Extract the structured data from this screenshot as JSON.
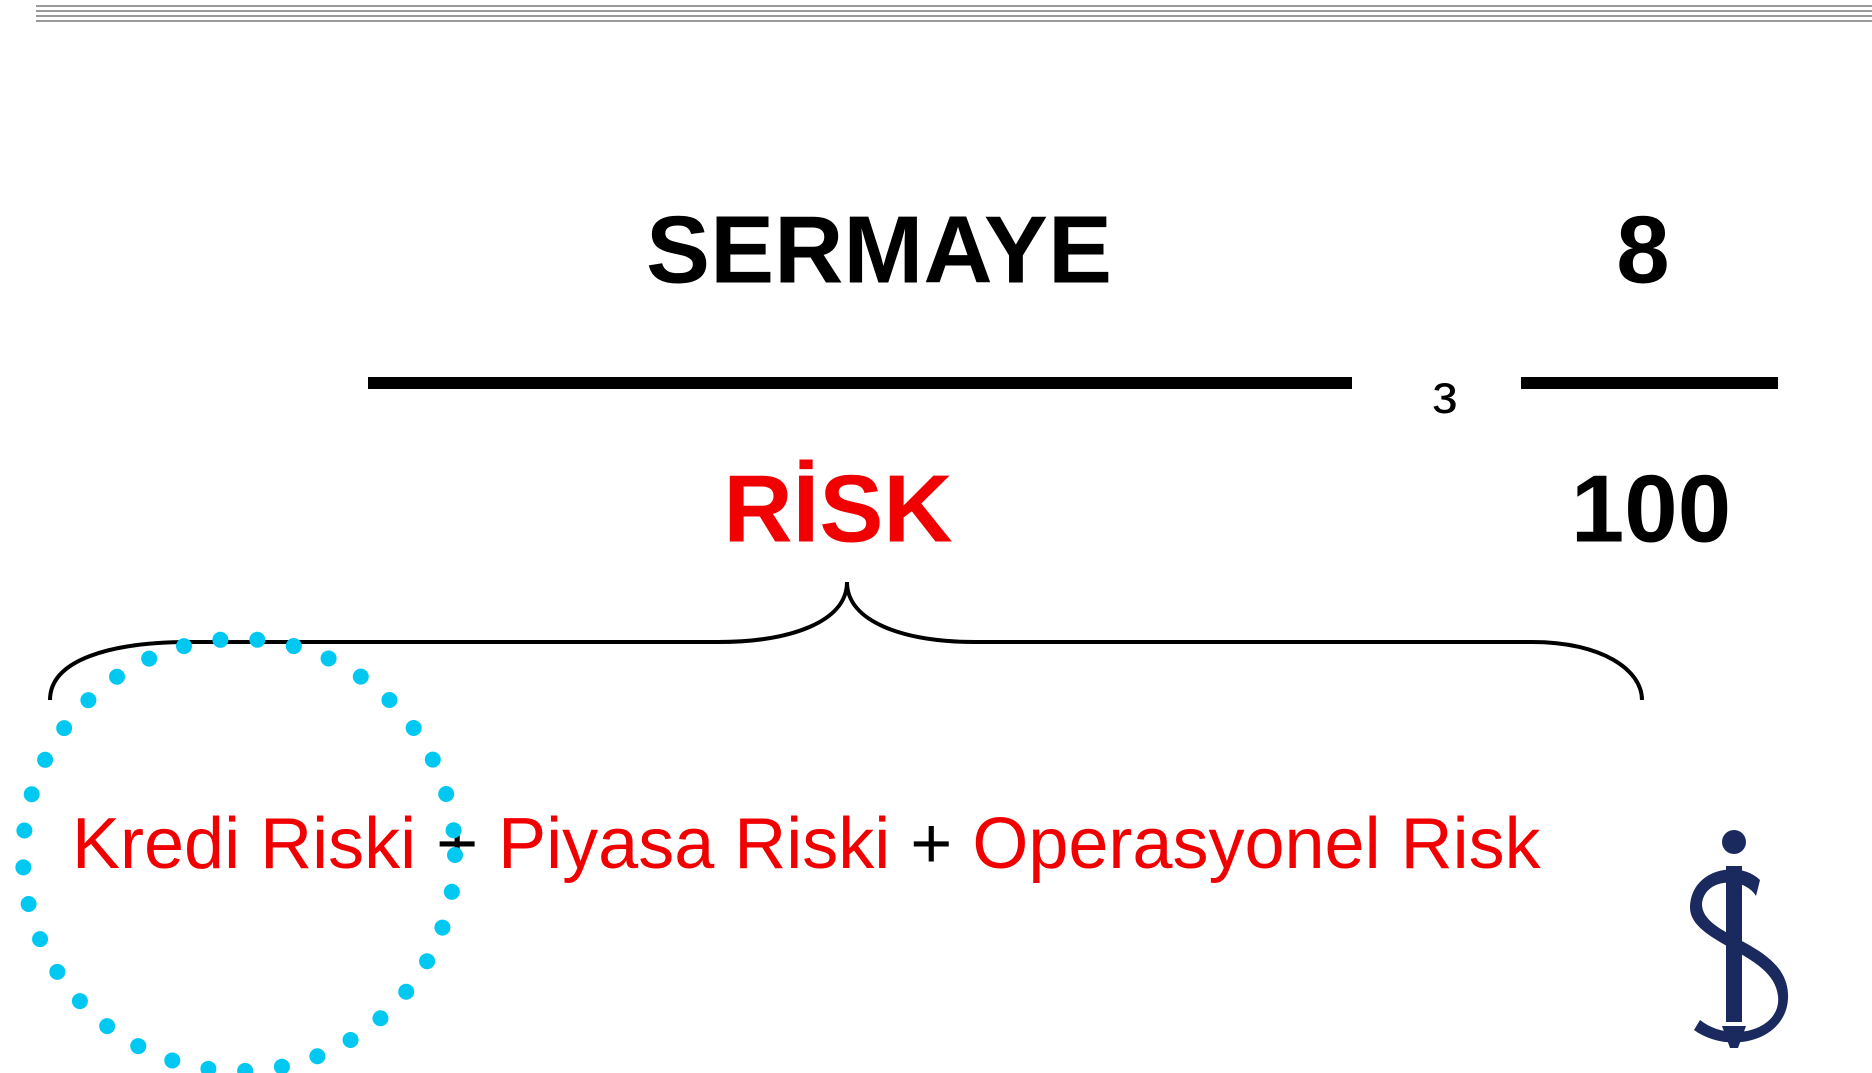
{
  "formula": {
    "numerator": "SERMAYE",
    "relation": "з",
    "denominator": "RİSK",
    "ratio_numerator": 8,
    "ratio_denominator": 100
  },
  "risk_components": [
    "Kredi Riski",
    "+",
    "Piyasa Riski",
    "+",
    "Operasyonel Risk"
  ]
}
